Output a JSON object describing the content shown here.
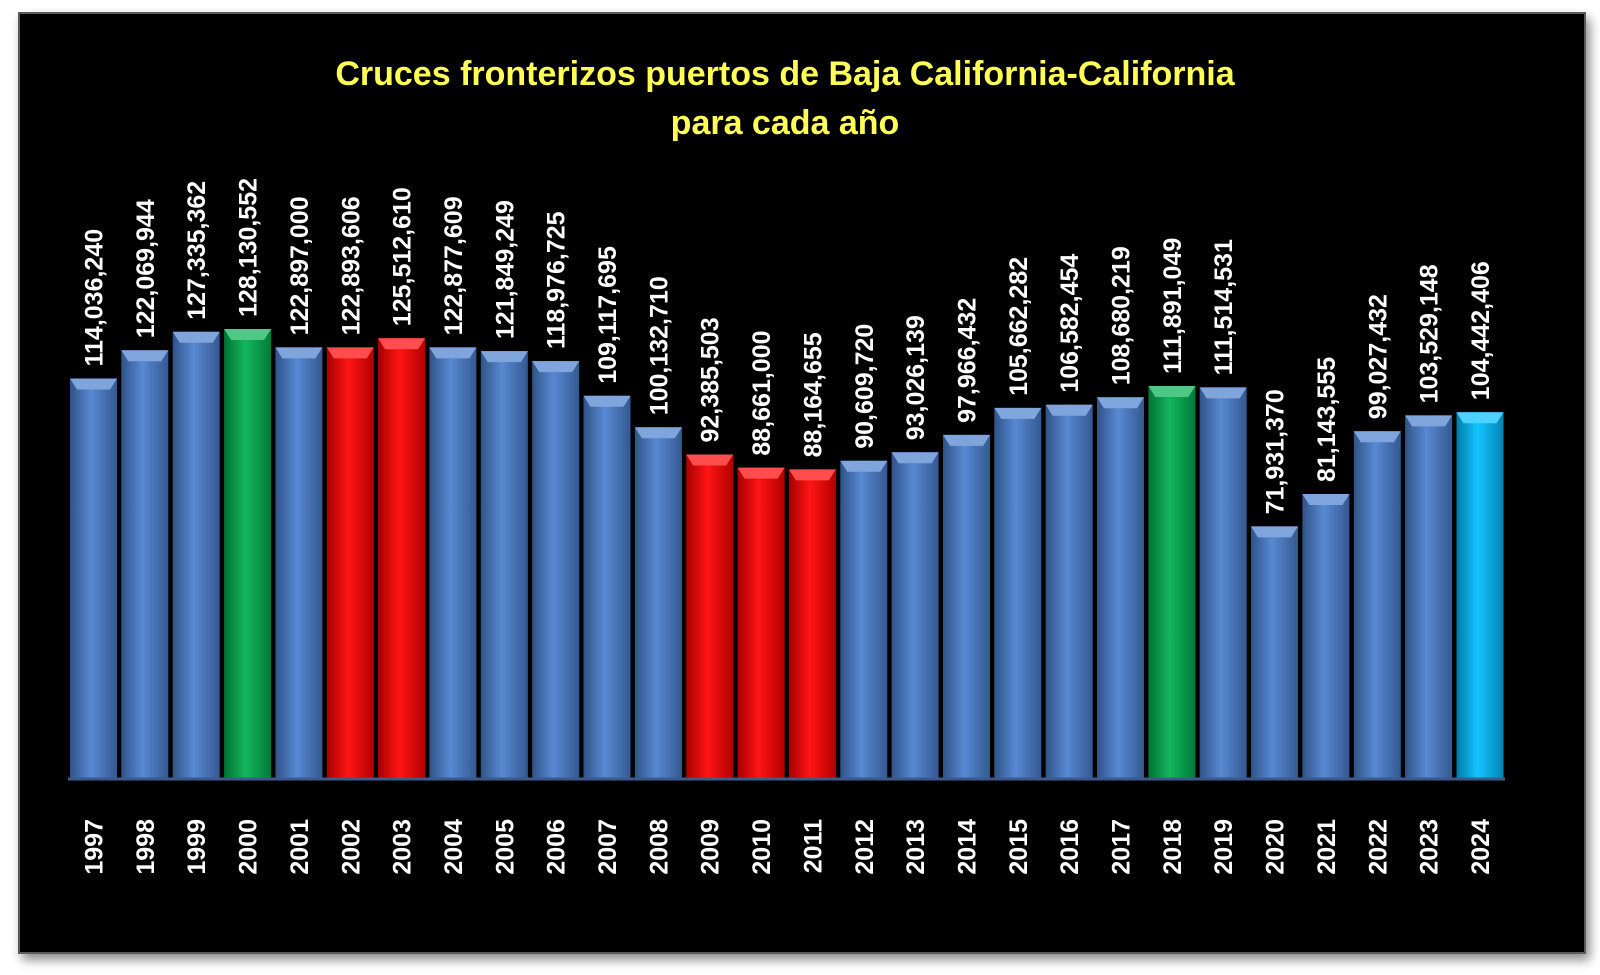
{
  "chart_data": {
    "type": "bar",
    "title_lines": [
      "Cruces fronterizos puertos de Baja California-California",
      "para cada año"
    ],
    "categories": [
      "1997",
      "1998",
      "1999",
      "2000",
      "2001",
      "2002",
      "2003",
      "2004",
      "2005",
      "2006",
      "2007",
      "2008",
      "2009",
      "2010",
      "2011",
      "2012",
      "2013",
      "2014",
      "2015",
      "2016",
      "2017",
      "2018",
      "2019",
      "2020",
      "2021",
      "2022",
      "2023",
      "2024"
    ],
    "values": [
      114036240,
      122069944,
      127335362,
      128130552,
      122897000,
      122893606,
      125512610,
      122877609,
      121849249,
      118976725,
      109117695,
      100132710,
      92385503,
      88661000,
      88164655,
      90609720,
      93026139,
      97966432,
      105662282,
      106582454,
      108680219,
      111891049,
      111514531,
      71931370,
      81143555,
      99027432,
      103529148,
      104442406
    ],
    "value_labels": [
      "114,036,240",
      "122,069,944",
      "127,335,362",
      "128,130,552",
      "122,897,000",
      "122,893,606",
      "125,512,610",
      "122,877,609",
      "121,849,249",
      "118,976,725",
      "109,117,695",
      "100,132,710",
      "92,385,503",
      "88,661,000",
      "88,164,655",
      "90,609,720",
      "93,026,139",
      "97,966,432",
      "105,662,282",
      "106,582,454",
      "108,680,219",
      "111,891,049",
      "111,514,531",
      "71,931,370",
      "81,143,555",
      "99,027,432",
      "103,529,148",
      "104,442,406"
    ],
    "bar_colors": [
      "#4a7fcf",
      "#4a7fcf",
      "#4a7fcf",
      "#00b050",
      "#4a7fcf",
      "#ff0000",
      "#ff0000",
      "#4a7fcf",
      "#4a7fcf",
      "#4a7fcf",
      "#4a7fcf",
      "#4a7fcf",
      "#ff0000",
      "#ff0000",
      "#ff0000",
      "#4a7fcf",
      "#4a7fcf",
      "#4a7fcf",
      "#4a7fcf",
      "#4a7fcf",
      "#4a7fcf",
      "#00b050",
      "#4a7fcf",
      "#4a7fcf",
      "#4a7fcf",
      "#4a7fcf",
      "#4a7fcf",
      "#00bfff"
    ],
    "ylim": [
      0,
      130000000
    ],
    "grid": false,
    "legend": "none",
    "background_color": "#000000",
    "title_color": "#ffff55",
    "label_color": "#ffffff"
  }
}
